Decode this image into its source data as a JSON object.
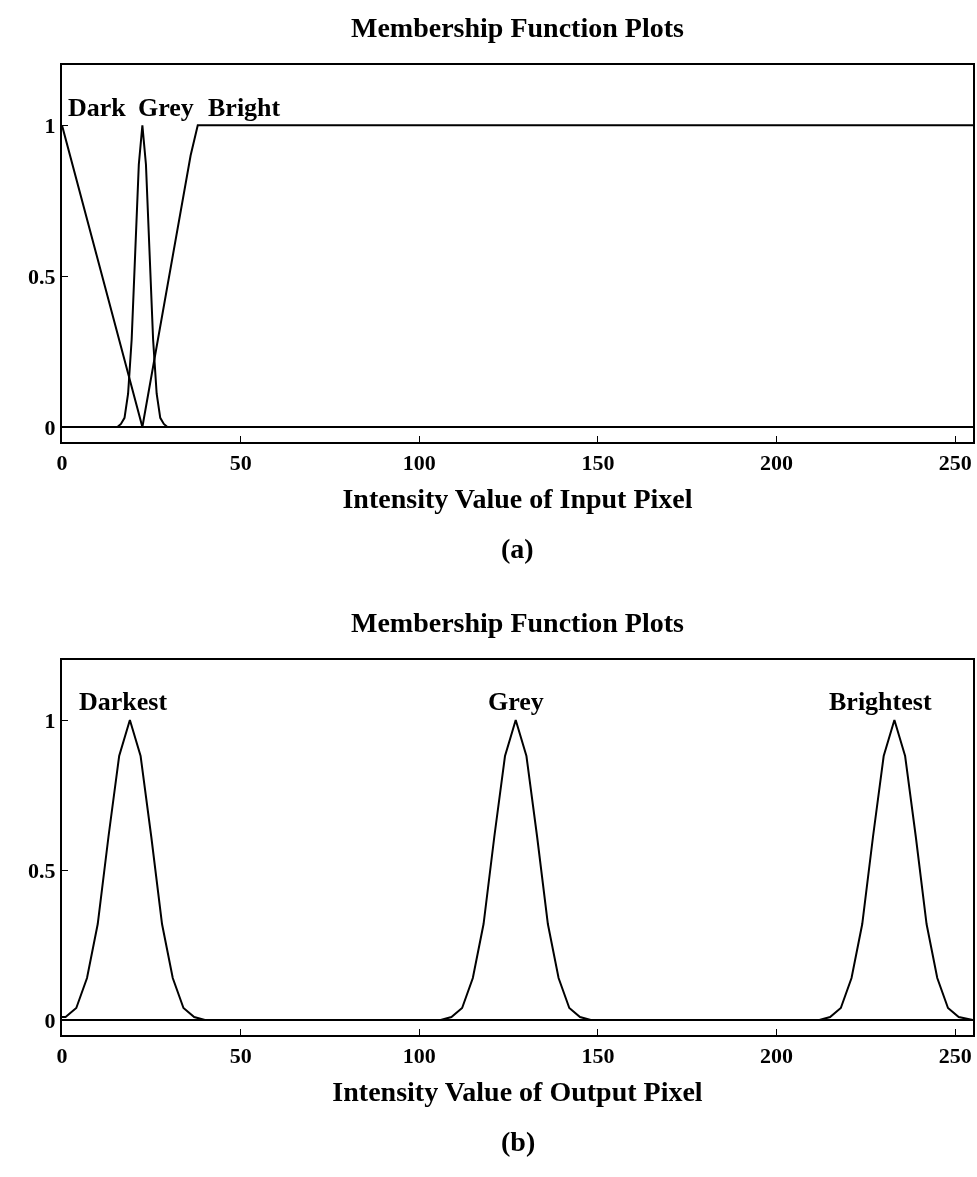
{
  "chart_data": [
    {
      "type": "line",
      "title": "Membership Function Plots",
      "xlabel": "Intensity Value of Input Pixel",
      "annotations": [
        "(a)"
      ],
      "series": [
        {
          "name": "Dark",
          "color": "#000000",
          "x": [
            0,
            22.5,
            255
          ],
          "values": [
            1,
            0,
            0
          ]
        },
        {
          "name": "Grey",
          "color": "#000000",
          "x": [
            0,
            15.5,
            16.5,
            17.5,
            18.5,
            19.5,
            20.5,
            21.5,
            22.5,
            23.5,
            24.5,
            25.5,
            26.5,
            27.5,
            28.5,
            29.5,
            255
          ],
          "values": [
            0,
            0,
            0.01,
            0.03,
            0.11,
            0.29,
            0.58,
            0.87,
            1,
            0.87,
            0.58,
            0.29,
            0.11,
            0.03,
            0.01,
            0,
            0
          ]
        },
        {
          "name": "Bright",
          "color": "#000000",
          "x": [
            0,
            22.5,
            36,
            38,
            255
          ],
          "values": [
            0,
            0,
            0.9,
            1,
            1
          ]
        }
      ],
      "xlim": [
        0,
        255
      ],
      "ylim": [
        -0.05,
        1.2
      ],
      "xticks": [
        0,
        50,
        100,
        150,
        200,
        250
      ],
      "yticks": [
        0,
        0.5,
        1
      ],
      "legend": false
    },
    {
      "type": "line",
      "title": "Membership Function Plots",
      "xlabel": "Intensity Value of Output Pixel",
      "annotations": [
        "(b)"
      ],
      "series": [
        {
          "name": "Darkest",
          "color": "#000000",
          "x": [
            0,
            1,
            4,
            7,
            10,
            13,
            16,
            19,
            22,
            25,
            28,
            31,
            34,
            37,
            40,
            255
          ],
          "values": [
            0.01,
            0.01,
            0.04,
            0.14,
            0.32,
            0.61,
            0.88,
            1,
            0.88,
            0.61,
            0.32,
            0.14,
            0.04,
            0.01,
            0,
            0
          ]
        },
        {
          "name": "Grey",
          "color": "#000000",
          "x": [
            0,
            106,
            109,
            112,
            115,
            118,
            121,
            124,
            127,
            130,
            133,
            136,
            139,
            142,
            145,
            148,
            255
          ],
          "values": [
            0,
            0,
            0.01,
            0.04,
            0.14,
            0.32,
            0.61,
            0.88,
            1,
            0.88,
            0.61,
            0.32,
            0.14,
            0.04,
            0.01,
            0,
            0
          ]
        },
        {
          "name": "Brightest",
          "color": "#000000",
          "x": [
            0,
            212,
            215,
            218,
            221,
            224,
            227,
            230,
            233,
            236,
            239,
            242,
            245,
            248,
            251,
            255
          ],
          "values": [
            0,
            0,
            0.01,
            0.04,
            0.14,
            0.32,
            0.61,
            0.88,
            1,
            0.88,
            0.61,
            0.32,
            0.14,
            0.04,
            0.01,
            0
          ]
        }
      ],
      "xlim": [
        0,
        255
      ],
      "ylim": [
        -0.05,
        1.2
      ],
      "xticks": [
        0,
        50,
        100,
        150,
        200,
        250
      ],
      "yticks": [
        0,
        0.5,
        1
      ],
      "legend": false
    }
  ]
}
